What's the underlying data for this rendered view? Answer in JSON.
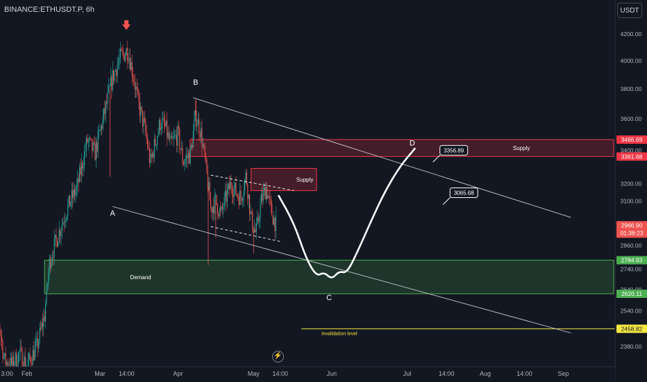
{
  "header": {
    "symbol": "BINANCE:ETHUSDT.P, 6h",
    "currency": "USDT"
  },
  "icons": {
    "bolt": "lightning-icon",
    "peak_marker": "down-arrow-icon"
  },
  "colors": {
    "background": "#131722",
    "candle_up": "#26a69a",
    "candle_down": "#ef5350",
    "supply_zone": "#f23645",
    "demand_zone": "#4caf50",
    "invalidation_line": "#f5e642",
    "trendline": "#d1d4dc",
    "projection": "#ffffff"
  },
  "chart_data": {
    "type": "candlestick",
    "symbol": "BINANCE:ETHUSDT.P",
    "interval": "6h",
    "y_scale": "log",
    "ylim": [
      2330,
      4290
    ],
    "y_ticks": [
      {
        "value": 4200,
        "label": "4200.00"
      },
      {
        "value": 4000,
        "label": "4000.00"
      },
      {
        "value": 3800,
        "label": "3800.00"
      },
      {
        "value": 3600,
        "label": "3600.00"
      },
      {
        "value": 3400,
        "label": "3400.00"
      },
      {
        "value": 3200,
        "label": "3200.00"
      },
      {
        "value": 3100,
        "label": "3100.00"
      },
      {
        "value": 2860,
        "label": "2860.00"
      },
      {
        "value": 2740,
        "label": "2740.00"
      },
      {
        "value": 2640,
        "label": "2640.00"
      },
      {
        "value": 2540,
        "label": "2540.00"
      },
      {
        "value": 2380,
        "label": "2380.00"
      }
    ],
    "x_range": [
      "2024-01-18T00:00",
      "2024-09-21T00:00"
    ],
    "x_ticks": [
      {
        "t": "2024-01-18T03:00",
        "label": "3:00"
      },
      {
        "t": "2024-02-01T00:00",
        "label": "Feb"
      },
      {
        "t": "2024-03-01T00:00",
        "label": "Mar"
      },
      {
        "t": "2024-03-11T14:00",
        "label": "14:00"
      },
      {
        "t": "2024-04-01T00:00",
        "label": "Apr"
      },
      {
        "t": "2024-05-01T00:00",
        "label": "May"
      },
      {
        "t": "2024-05-11T14:00",
        "label": "14:00"
      },
      {
        "t": "2024-06-01T00:00",
        "label": "Jun"
      },
      {
        "t": "2024-07-01T00:00",
        "label": "Jul"
      },
      {
        "t": "2024-07-16T14:00",
        "label": "14:00"
      },
      {
        "t": "2024-08-01T00:00",
        "label": "Aug"
      },
      {
        "t": "2024-08-16T14:00",
        "label": "14:00"
      },
      {
        "t": "2024-09-01T00:00",
        "label": "Sep"
      }
    ],
    "price_path": [
      {
        "t": "2024-01-17T00:00",
        "p": 2520
      },
      {
        "t": "2024-01-19T00:00",
        "p": 2620
      },
      {
        "t": "2024-01-21T00:00",
        "p": 2480
      },
      {
        "t": "2024-01-23T00:00",
        "p": 2320
      },
      {
        "t": "2024-01-26T00:00",
        "p": 2300
      },
      {
        "t": "2024-01-29T00:00",
        "p": 2350
      },
      {
        "t": "2024-02-01T00:00",
        "p": 2300
      },
      {
        "t": "2024-02-05T00:00",
        "p": 2380
      },
      {
        "t": "2024-02-08T00:00",
        "p": 2520
      },
      {
        "t": "2024-02-10T00:00",
        "p": 2780
      },
      {
        "t": "2024-02-13T00:00",
        "p": 2900
      },
      {
        "t": "2024-02-17T00:00",
        "p": 3060
      },
      {
        "t": "2024-02-21T00:00",
        "p": 3180
      },
      {
        "t": "2024-02-25T00:00",
        "p": 3460
      },
      {
        "t": "2024-02-28T00:00",
        "p": 3380
      },
      {
        "t": "2024-03-03T00:00",
        "p": 3650
      },
      {
        "t": "2024-03-06T00:00",
        "p": 3880
      },
      {
        "t": "2024-03-09T00:00",
        "p": 4020
      },
      {
        "t": "2024-03-12T00:00",
        "p": 4080
      },
      {
        "t": "2024-03-14T00:00",
        "p": 3920
      },
      {
        "t": "2024-03-16T00:00",
        "p": 3720
      },
      {
        "t": "2024-03-19T00:00",
        "p": 3520
      },
      {
        "t": "2024-03-21T00:00",
        "p": 3320
      },
      {
        "t": "2024-03-23T00:00",
        "p": 3450
      },
      {
        "t": "2024-03-25T00:00",
        "p": 3580
      },
      {
        "t": "2024-03-27T00:00",
        "p": 3540
      },
      {
        "t": "2024-03-29T00:00",
        "p": 3430
      },
      {
        "t": "2024-04-01T00:00",
        "p": 3500
      },
      {
        "t": "2024-04-03T00:00",
        "p": 3330
      },
      {
        "t": "2024-04-06T00:00",
        "p": 3380
      },
      {
        "t": "2024-04-08T00:00",
        "p": 3620
      },
      {
        "t": "2024-04-10T00:00",
        "p": 3520
      },
      {
        "t": "2024-04-12T00:00",
        "p": 3300
      },
      {
        "t": "2024-04-14T00:00",
        "p": 3060
      },
      {
        "t": "2024-04-16T00:00",
        "p": 3100
      },
      {
        "t": "2024-04-18T00:00",
        "p": 3020
      },
      {
        "t": "2024-04-20T00:00",
        "p": 3120
      },
      {
        "t": "2024-04-22T00:00",
        "p": 3200
      },
      {
        "t": "2024-04-24T00:00",
        "p": 3150
      },
      {
        "t": "2024-04-26T00:00",
        "p": 3120
      },
      {
        "t": "2024-04-28T00:00",
        "p": 3250
      },
      {
        "t": "2024-04-30T00:00",
        "p": 3000
      },
      {
        "t": "2024-05-02T00:00",
        "p": 2920
      },
      {
        "t": "2024-05-04T00:00",
        "p": 3100
      },
      {
        "t": "2024-05-06T00:00",
        "p": 3180
      },
      {
        "t": "2024-05-08T00:00",
        "p": 3040
      },
      {
        "t": "2024-05-10T00:00",
        "p": 2966.9
      }
    ],
    "notable_wicks": [
      {
        "t": "2024-03-12T00:00",
        "p": 4093,
        "kind": "high"
      },
      {
        "t": "2024-03-05T00:00",
        "p": 3240,
        "kind": "low"
      },
      {
        "t": "2024-04-08T00:00",
        "p": 3730,
        "kind": "high"
      },
      {
        "t": "2024-04-13T00:00",
        "p": 2760,
        "kind": "low"
      },
      {
        "t": "2024-04-16T00:00",
        "p": 2900,
        "kind": "low"
      },
      {
        "t": "2024-05-01T00:00",
        "p": 2820,
        "kind": "low"
      }
    ],
    "zones": [
      {
        "name": "supply-zone-upper",
        "label": "Supply",
        "kind": "supply",
        "from": "2024-04-05T18:00",
        "to": "2024-09-21T00:00",
        "top": 3466.69,
        "bottom": 3361.68,
        "label_at": "2024-08-12T00:00"
      },
      {
        "name": "supply-zone-lower",
        "label": "Supply",
        "kind": "supply",
        "from": "2024-04-30T00:00",
        "to": "2024-05-26T00:00",
        "top": 3290,
        "bottom": 3160,
        "label_at": "2024-05-18T00:00"
      },
      {
        "name": "demand-zone",
        "label": "Demand",
        "kind": "demand",
        "from": "2024-02-08T00:00",
        "to": "2024-09-21T00:00",
        "top": 2784.93,
        "bottom": 2620.11,
        "label_at": "2024-03-13T00:00"
      }
    ],
    "invalidation": {
      "label": "invalidation level",
      "price": 2458.82,
      "from": "2024-05-20T00:00",
      "to": "2024-09-21T00:00",
      "label_at": "2024-05-28T00:00"
    },
    "trendlines": [
      {
        "name": "upper-trendline",
        "from": {
          "t": "2024-04-07T00:00",
          "p": 3740
        },
        "to": {
          "t": "2024-09-04T00:00",
          "p": 3010
        }
      },
      {
        "name": "lower-trendline",
        "from": {
          "t": "2024-03-06T00:00",
          "p": 3070
        },
        "to": {
          "t": "2024-09-04T00:00",
          "p": 2440
        }
      }
    ],
    "channel_lines": [
      {
        "name": "channel-top",
        "from": {
          "t": "2024-04-14T00:00",
          "p": 3250
        },
        "to": {
          "t": "2024-05-17T00:00",
          "p": 3160
        }
      },
      {
        "name": "channel-bottom",
        "from": {
          "t": "2024-04-14T00:00",
          "p": 2960
        },
        "to": {
          "t": "2024-05-12T00:00",
          "p": 2880
        }
      }
    ],
    "wave_labels": [
      {
        "text": "B",
        "t": "2024-04-08T00:00",
        "p": 3830
      },
      {
        "text": "A",
        "t": "2024-03-06T00:00",
        "p": 3020
      },
      {
        "text": "C",
        "t": "2024-05-31T00:00",
        "p": 2590
      },
      {
        "text": "D",
        "t": "2024-07-03T00:00",
        "p": 3430
      }
    ],
    "projection_path": [
      {
        "t": "2024-05-11T00:00",
        "p": 3130
      },
      {
        "t": "2024-05-17T00:00",
        "p": 2980
      },
      {
        "t": "2024-05-22T00:00",
        "p": 2790
      },
      {
        "t": "2024-05-26T00:00",
        "p": 2705
      },
      {
        "t": "2024-05-29T00:00",
        "p": 2725
      },
      {
        "t": "2024-06-01T00:00",
        "p": 2690
      },
      {
        "t": "2024-06-04T00:00",
        "p": 2730
      },
      {
        "t": "2024-06-07T00:00",
        "p": 2720
      },
      {
        "t": "2024-06-11T00:00",
        "p": 2820
      },
      {
        "t": "2024-06-17T00:00",
        "p": 3000
      },
      {
        "t": "2024-06-22T00:00",
        "p": 3150
      },
      {
        "t": "2024-06-28T00:00",
        "p": 3300
      },
      {
        "t": "2024-07-04T00:00",
        "p": 3410
      }
    ],
    "callouts": [
      {
        "label": "3356.89",
        "t": "2024-07-14T00:00",
        "p": 3370
      },
      {
        "label": "3065.68",
        "t": "2024-07-18T00:00",
        "p": 3120
      }
    ],
    "price_labels": [
      {
        "value": 3466.69,
        "label": "3466.69",
        "color": "#f23645"
      },
      {
        "value": 3361.68,
        "label": "3361.68",
        "color": "#f23645"
      },
      {
        "value": 2966.9,
        "label": "2966.90",
        "extra": "01:38:23",
        "color": "#ef5350"
      },
      {
        "value": 2784.93,
        "label": "2784.93",
        "color": "#4caf50"
      },
      {
        "value": 2620.11,
        "label": "2620.11",
        "color": "#4caf50"
      },
      {
        "value": 2458.82,
        "label": "2458.82",
        "color": "#f5e642"
      }
    ],
    "peak_marker": {
      "t": "2024-03-11T12:00",
      "p": 4230
    },
    "title": "",
    "xlabel": "",
    "ylabel": ""
  }
}
